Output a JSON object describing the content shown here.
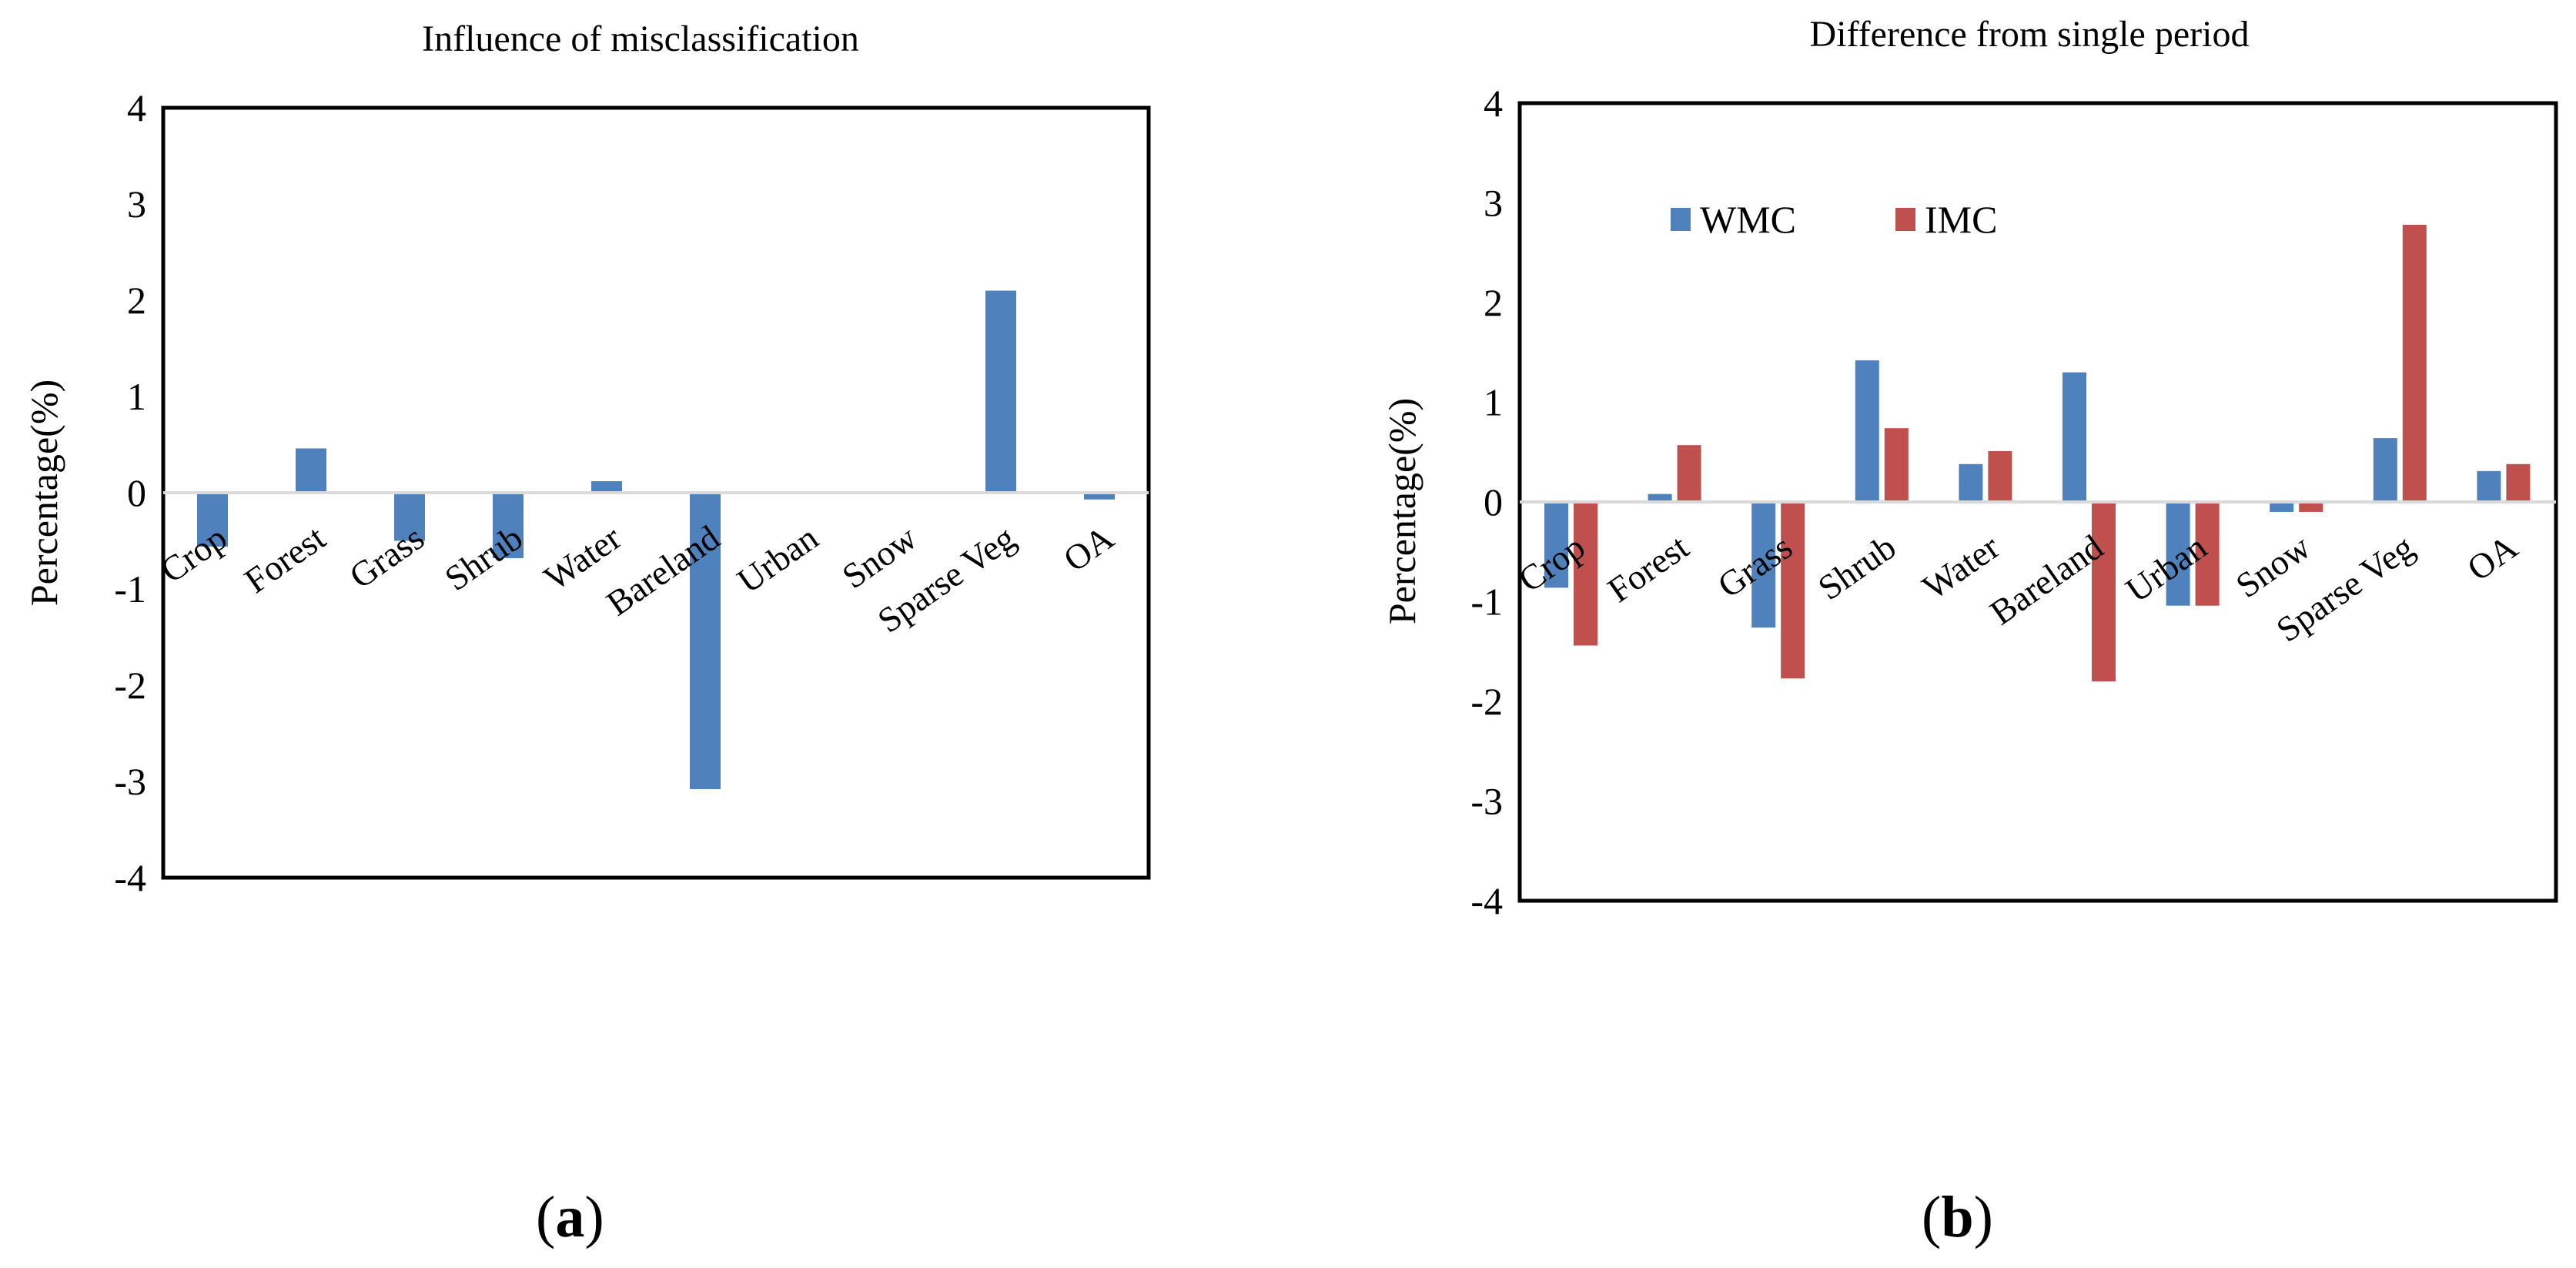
{
  "chart_data": [
    {
      "type": "bar",
      "title": "Influence of misclassification",
      "ylabel": "Percentage(%)",
      "xlabel": "",
      "ylim": [
        -4,
        4
      ],
      "yticks": [
        4,
        3,
        2,
        1,
        0,
        -1,
        -2,
        -3,
        -4
      ],
      "categories": [
        "Crop",
        "Forest",
        "Grass",
        "Shrub",
        "Water",
        "Bareland",
        "Urban",
        "Snow",
        "Sparse Veg",
        "OA"
      ],
      "series": [
        {
          "name": "",
          "color": "#4f81bd",
          "values": [
            -0.56,
            0.46,
            -0.5,
            -0.68,
            0.12,
            -3.08,
            0,
            0,
            2.1,
            -0.07
          ]
        }
      ],
      "legend": null,
      "panel_label": "a"
    },
    {
      "type": "bar",
      "title": "Difference from single period",
      "ylabel": "Percentage(%)",
      "xlabel": "",
      "ylim": [
        -4,
        4
      ],
      "yticks": [
        4,
        3,
        2,
        1,
        0,
        -1,
        -2,
        -3,
        -4
      ],
      "categories": [
        "Crop",
        "Forest",
        "Grass",
        "Shrub",
        "Water",
        "Bareland",
        "Urban",
        "Snow",
        "Sparse Veg",
        "OA"
      ],
      "series": [
        {
          "name": "WMC",
          "color": "#4f81bd",
          "values": [
            -0.86,
            0.08,
            -1.26,
            1.42,
            0.38,
            1.3,
            -1.04,
            -0.1,
            0.64,
            0.31
          ]
        },
        {
          "name": "IMC",
          "color": "#c0504d",
          "values": [
            -1.44,
            0.57,
            -1.77,
            0.74,
            0.51,
            -1.8,
            -1.04,
            -0.1,
            2.78,
            0.38
          ]
        }
      ],
      "legend": "top-left",
      "panel_label": "b"
    }
  ]
}
